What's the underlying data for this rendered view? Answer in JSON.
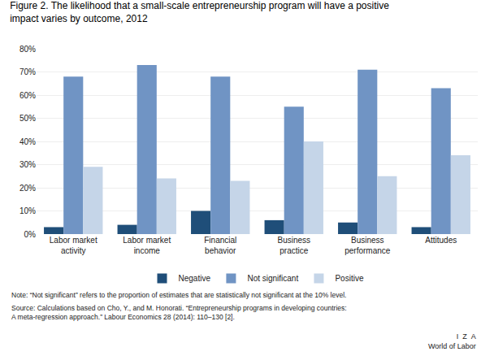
{
  "chart_data": {
    "type": "bar",
    "title": "Figure 2. The likelihood that a small-scale entrepreneurship program will have a positive\nimpact varies by outcome, 2012",
    "categories": [
      "Labor market\nactivity",
      "Labor market\nincome",
      "Financial\nbehavior",
      "Business\npractice",
      "Business\nperformance",
      "Attitudes"
    ],
    "series": [
      {
        "name": "Negative",
        "color": "#1F4E79",
        "values": [
          3,
          4,
          10,
          6,
          5,
          3
        ]
      },
      {
        "name": "Not significant",
        "color": "#7094C4",
        "values": [
          68,
          73,
          68,
          55,
          71,
          63
        ]
      },
      {
        "name": "Positive",
        "color": "#C5D5E8",
        "values": [
          29,
          24,
          23,
          40,
          25,
          34
        ]
      }
    ],
    "ylim": [
      0,
      80
    ],
    "yticks": [
      {
        "value": 0,
        "label": "0%"
      },
      {
        "value": 10,
        "label": "10%"
      },
      {
        "value": 20,
        "label": "20%"
      },
      {
        "value": 30,
        "label": "30%"
      },
      {
        "value": 40,
        "label": "40%"
      },
      {
        "value": 50,
        "label": "50%"
      },
      {
        "value": 60,
        "label": "60%"
      },
      {
        "value": 70,
        "label": "70%"
      },
      {
        "value": 80,
        "label": "80%"
      }
    ],
    "grid": true,
    "legend": "bottom",
    "annotations": [
      "Note: “Not significant” refers to the proportion of estimates that are statistically not significant at the 10% level.",
      "Source: Calculations based on Cho, Y., and M. Honorati. “Entrepreneurship programs in developing countries:\nA meta-regression approach.” Labour Economics 28 (2014): 110–130 [2].",
      "I  Z  A\nWorld of Labor"
    ]
  }
}
